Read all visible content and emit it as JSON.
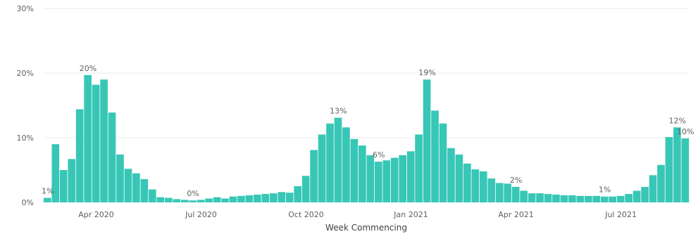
{
  "chart_data": {
    "type": "bar",
    "xlabel": "Week Commencing",
    "ylabel": "",
    "ylim": [
      0,
      30
    ],
    "y_ticks": [
      "0%",
      "10%",
      "20%",
      "30%"
    ],
    "y_tick_values": [
      0,
      10,
      20,
      30
    ],
    "x_ticks": [
      "Apr 2020",
      "Jul 2020",
      "Oct 2020",
      "Jan 2021",
      "Apr 2021",
      "Jul 2021"
    ],
    "x_tick_weeks": [
      6,
      19,
      32,
      45,
      58,
      71
    ],
    "grid": true,
    "bar_color": "#38c7b6",
    "values": [
      0.7,
      9.0,
      5.0,
      6.7,
      14.4,
      19.7,
      18.2,
      19.0,
      13.9,
      7.4,
      5.2,
      4.5,
      3.6,
      2.0,
      0.8,
      0.7,
      0.5,
      0.4,
      0.3,
      0.4,
      0.6,
      0.8,
      0.6,
      0.9,
      1.0,
      1.1,
      1.2,
      1.3,
      1.4,
      1.6,
      1.5,
      2.5,
      4.1,
      8.1,
      10.5,
      12.2,
      13.1,
      11.6,
      9.8,
      8.8,
      7.3,
      6.3,
      6.5,
      6.9,
      7.3,
      7.9,
      10.5,
      19.0,
      14.2,
      12.2,
      8.4,
      7.4,
      6.0,
      5.1,
      4.8,
      3.7,
      3.0,
      2.9,
      2.4,
      1.8,
      1.4,
      1.4,
      1.3,
      1.2,
      1.1,
      1.1,
      1.0,
      1.0,
      1.0,
      0.9,
      0.9,
      1.0,
      1.3,
      1.8,
      2.4,
      4.2,
      5.8,
      10.1,
      11.6,
      9.9
    ],
    "data_labels": [
      {
        "index": 0,
        "text": "1%"
      },
      {
        "index": 5,
        "text": "20%"
      },
      {
        "index": 18,
        "text": "0%"
      },
      {
        "index": 36,
        "text": "13%"
      },
      {
        "index": 41,
        "text": "6%"
      },
      {
        "index": 47,
        "text": "19%"
      },
      {
        "index": 58,
        "text": "2%"
      },
      {
        "index": 69,
        "text": "1%"
      },
      {
        "index": 78,
        "text": "12%"
      },
      {
        "index": 79,
        "text": "10%"
      }
    ]
  }
}
